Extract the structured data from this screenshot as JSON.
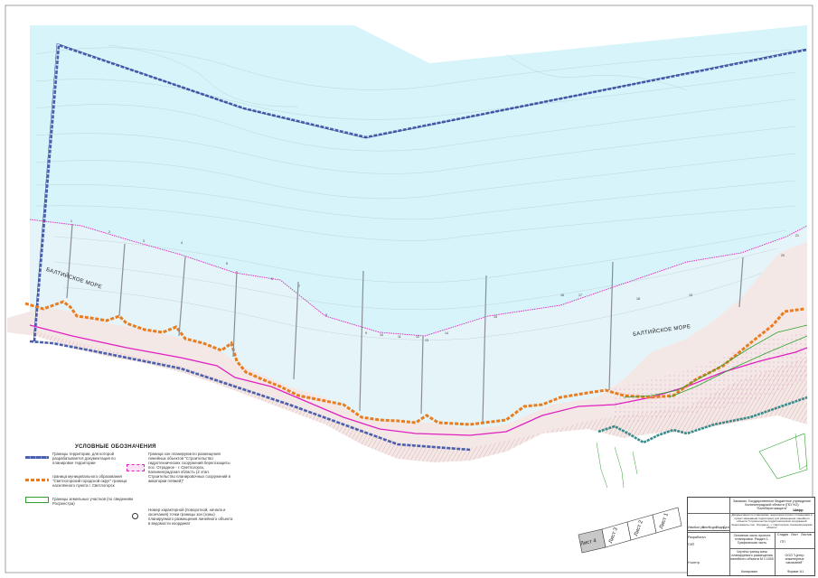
{
  "map": {
    "sea_labels": [
      "БАЛТИЙСКОЕ МОРЕ",
      "БАЛТИЙСКОЕ МОРЕ"
    ],
    "profile_numbers": [
      "1",
      "2",
      "3",
      "4",
      "5",
      "6",
      "7",
      "8",
      "9",
      "10",
      "11",
      "12",
      "13",
      "14",
      "15",
      "16",
      "17",
      "18",
      "19",
      "20",
      "21"
    ],
    "colors": {
      "sea": "#d6f4fa",
      "planning_boundary": "#4a5fae",
      "municipal_boundary": "#e87c1e",
      "land_plots": "#2ea02e",
      "zone_boundary": "#e020c0",
      "lines": "#9aa0a6"
    }
  },
  "legend": {
    "title": "УСЛОВНЫЕ ОБОЗНАЧЕНИЯ",
    "items": [
      {
        "key": "planning",
        "text": "Границы территории, для которой разрабатывается документация по планировке территории"
      },
      {
        "key": "municipal",
        "text": "граница муниципального образования \"Светлогорский городской округ\" граница населённого пункта г. Светлогорск"
      },
      {
        "key": "plots",
        "text": "Границы земельных участков (по сведениям Росреестра)"
      },
      {
        "key": "zone",
        "text": "Граница зон планируемого размещения линейных объектов \"Строительство гидротехнических сооружений берегозащиты пос. Отрадное - г. Светлогорск, Калининградская область (2 этап. Строительство планировочных сооружений в акватории пляжей)\""
      },
      {
        "key": "points",
        "text": "Номер характерной (поворотной, начала и окончания) точки границы зон (зоны) планируемого размещения линейного объекта в ведомости координат"
      }
    ]
  },
  "sheets": [
    "Лист 4",
    "Лист 3",
    "Лист 2",
    "Лист 1"
  ],
  "stamp": {
    "customer": "Заказчик: Государственное бюджетное учреждение Калининградской области (ГБУ КО) \"Балтберегозащита\"",
    "code": "Шифр",
    "title": "Документация по планировке территории (проект планировки и проект межевания территории) для размещения линейного объекта \"Строительство гидротехнических сооружений берегозащиты пос. Отрадное - г. Светлогорск, Калининградская область\"",
    "part": "Основная часть проекта планировки. Раздел 1. Графическая часть",
    "drawing": "Чертёж границ зоны планируемого размещения линейного объекта М 1:1000",
    "stage_label": "Стадия",
    "sheet_label": "Лист",
    "sheets_label": "Листов",
    "stage": "ПП",
    "company": "ООО \"Центр инженерных изысканий\"",
    "format": "Формат А1",
    "copied": "Копировал",
    "columns": [
      "Изм.",
      "Кол.уч",
      "Лист",
      "№док",
      "Подп.",
      "Дата"
    ],
    "roles": [
      "Разработал",
      "ГИП",
      "Н.контр."
    ]
  }
}
